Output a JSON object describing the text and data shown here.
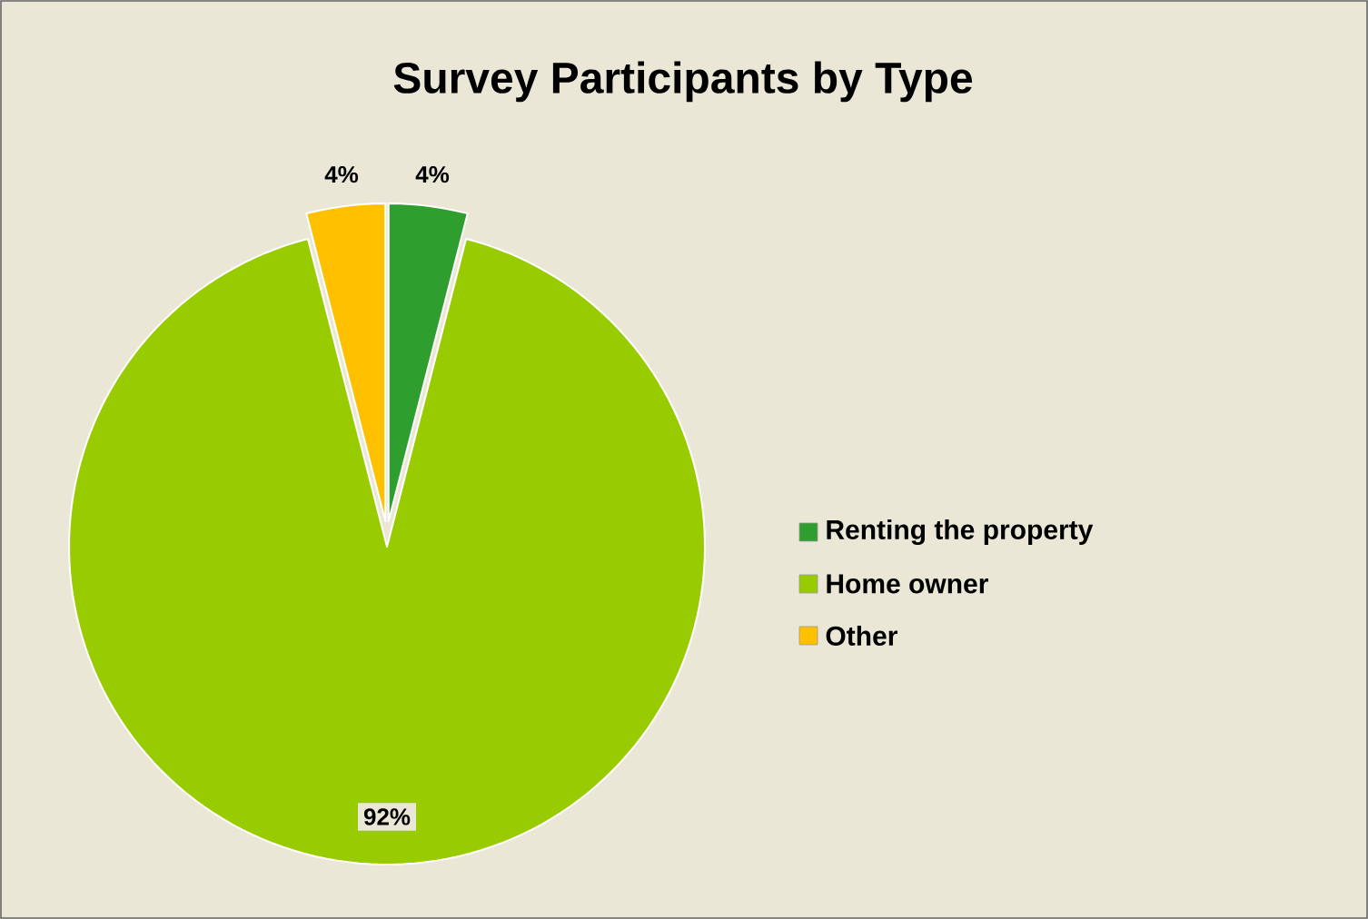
{
  "chart_data": {
    "type": "pie",
    "title": "Survey Participants by Type",
    "categories": [
      "Renting the property",
      "Home owner",
      "Other"
    ],
    "values": [
      4,
      92,
      4
    ],
    "value_labels": [
      "4%",
      "92%",
      "4%"
    ],
    "colors": [
      "#2e9e2e",
      "#99cc00",
      "#ffc000"
    ],
    "legend": "right"
  }
}
